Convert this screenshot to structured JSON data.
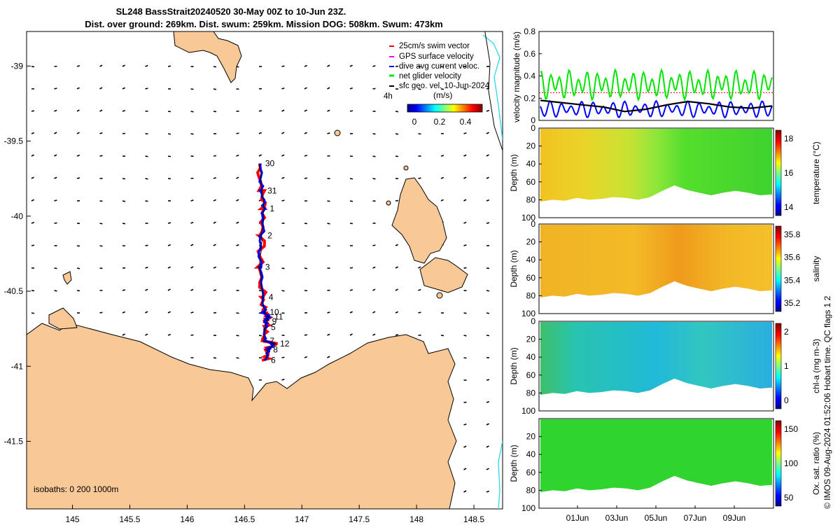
{
  "title_line1": "SL248 BassStrait20240520 30-May 00Z to 10-Jun 23Z.",
  "title_line2": "Dist. over ground: 269km. Dist. swum: 259km. Mission DOG: 508km. Swum: 473km",
  "footer_note": "© IMOS 09-Aug-2024 01:52:06 Hobart time. QC flags 1  2",
  "isobaths_label": "isobaths: 0   200  1000m",
  "colors": {
    "land": "#f8c897",
    "track_red": "#ff0000",
    "track_blue": "#0000ff",
    "net_green": "#00e600",
    "isobath_cyan": "#27d8e8"
  },
  "map": {
    "lon_ticks": [
      "145",
      "145.5",
      "146",
      "146.5",
      "147",
      "147.5",
      "148",
      "148.5"
    ],
    "lat_ticks": [
      "-39",
      "-39.5",
      "-40",
      "-40.5",
      "-41",
      "-41.5"
    ],
    "lon_range": [
      144.6,
      148.75
    ],
    "lat_range": [
      -41.95,
      -38.77
    ],
    "legend": {
      "items": [
        {
          "label": "25cm/s swim vector",
          "color": "#ff0000"
        },
        {
          "label": "GPS surface velocity",
          "color": "#ff00ff"
        },
        {
          "label": "dive avg current veloc.",
          "color": "#0000ff"
        },
        {
          "label": "net glider velocity",
          "color": "#00e600"
        },
        {
          "label": "sfc geo. vel. 10-Jun-2024",
          "color": "#000000"
        }
      ],
      "colorbar_unit": "(m/s)",
      "colorbar_ticks": [
        "0",
        "0.2",
        "0.4"
      ],
      "marker_4h": "4h"
    },
    "track_labels": [
      {
        "text": "30",
        "lon": 146.68,
        "lat": -39.65
      },
      {
        "text": "31",
        "lon": 146.7,
        "lat": -39.83
      },
      {
        "text": "1",
        "lon": 146.72,
        "lat": -39.95
      },
      {
        "text": "2",
        "lon": 146.7,
        "lat": -40.13
      },
      {
        "text": "3",
        "lon": 146.68,
        "lat": -40.34
      },
      {
        "text": "4",
        "lon": 146.71,
        "lat": -40.54
      },
      {
        "text": "10",
        "lon": 146.72,
        "lat": -40.64
      },
      {
        "text": "11",
        "lon": 146.76,
        "lat": -40.67
      },
      {
        "text": "9",
        "lon": 146.74,
        "lat": -40.7
      },
      {
        "text": "5",
        "lon": 146.73,
        "lat": -40.74
      },
      {
        "text": "7",
        "lon": 146.72,
        "lat": -40.83
      },
      {
        "text": "12",
        "lon": 146.81,
        "lat": -40.85
      },
      {
        "text": "8",
        "lon": 146.75,
        "lat": -40.89
      },
      {
        "text": "6",
        "lon": 146.73,
        "lat": -40.96
      }
    ]
  },
  "chart_data": [
    {
      "type": "line",
      "title": "",
      "ylabel": "velocity magnitude (m/s)",
      "ylim": [
        0,
        0.8
      ],
      "yticks": [
        "0",
        "0.2",
        "0.4",
        "0.6",
        "0.8"
      ],
      "series": [
        {
          "name": "net glider velocity",
          "color": "#00e600",
          "approx_mean": 0.32,
          "approx_amplitude": 0.09
        },
        {
          "name": "dive avg current veloc.",
          "color": "#0000ff",
          "approx_mean": 0.1,
          "approx_amplitude": 0.05
        },
        {
          "name": "sfc geo. vel.",
          "color": "#000000",
          "values": [
            0.18,
            0.16,
            0.14,
            0.12,
            0.08,
            0.1,
            0.14,
            0.17,
            0.15,
            0.12,
            0.11,
            0.13
          ]
        },
        {
          "name": "25cm/s swim vector",
          "color": "#ff0000",
          "values": [
            0.25
          ]
        }
      ]
    },
    {
      "type": "heatmap",
      "ylabel": "Depth (m)",
      "colorbar_label": "temperature (°C)",
      "colorbar_ticks": [
        "14",
        "16",
        "18"
      ],
      "yticks": [
        "0",
        "20",
        "40",
        "60",
        "80",
        "100"
      ],
      "ylim": [
        0,
        100
      ]
    },
    {
      "type": "heatmap",
      "ylabel": "Depth (m)",
      "colorbar_label": "salinity",
      "colorbar_ticks": [
        "35.2",
        "35.4",
        "35.6",
        "35.8"
      ],
      "yticks": [
        "0",
        "20",
        "40",
        "60",
        "80",
        "100"
      ],
      "ylim": [
        0,
        100
      ]
    },
    {
      "type": "heatmap",
      "ylabel": "Depth (m)",
      "colorbar_label": "chl-a (mg m-3)",
      "colorbar_ticks": [
        "0",
        "1",
        "2"
      ],
      "yticks": [
        "0",
        "20",
        "40",
        "60",
        "80",
        "100"
      ],
      "ylim": [
        0,
        100
      ]
    },
    {
      "type": "heatmap",
      "ylabel": "Depth (m)",
      "colorbar_label": "Ox. sat. ratio (%)",
      "colorbar_ticks": [
        "50",
        "100",
        "150"
      ],
      "yticks": [
        "20",
        "40",
        "60",
        "80",
        "100"
      ],
      "ylim": [
        0,
        100
      ],
      "xticks": [
        "01Jun",
        "03Jun",
        "05Jun",
        "07Jun",
        "09Jun"
      ]
    }
  ]
}
